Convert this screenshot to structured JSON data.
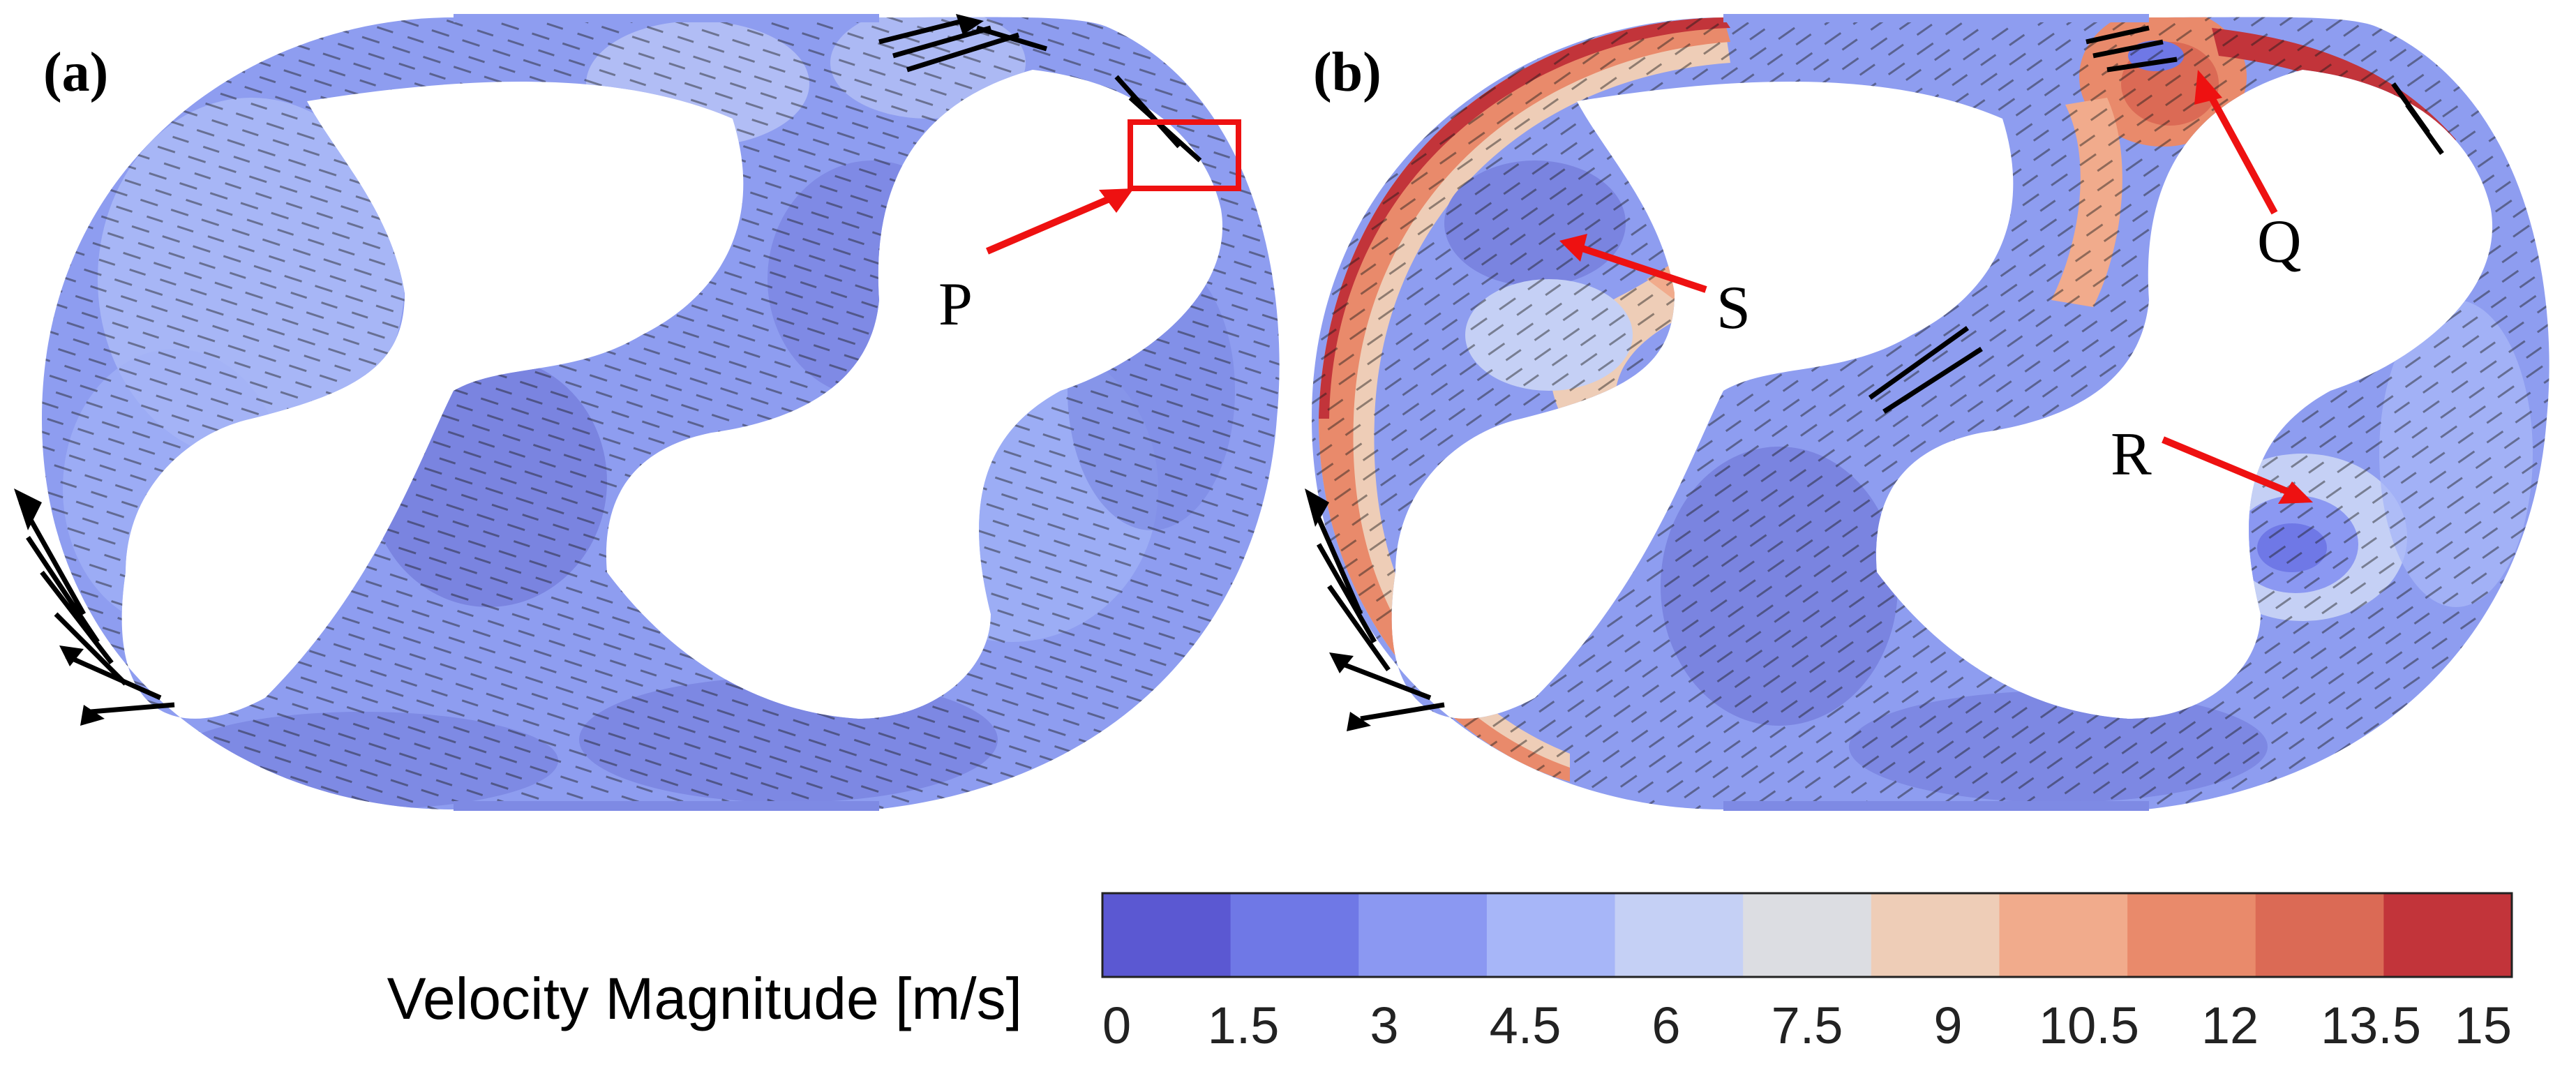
{
  "panels": [
    {
      "id": "a",
      "label": "(a)"
    },
    {
      "id": "b",
      "label": "(b)"
    }
  ],
  "annotations": {
    "P": "P",
    "Q": "Q",
    "R": "R",
    "S": "S"
  },
  "colorbar": {
    "title": "Velocity Magnitude [m/s]",
    "ticks": [
      "0",
      "1.5",
      "3",
      "4.5",
      "6",
      "7.5",
      "9",
      "10.5",
      "12",
      "13.5",
      "15"
    ],
    "colors": [
      "#5b58d2",
      "#6f78e6",
      "#8b98f2",
      "#a7b6f8",
      "#c5d0f5",
      "#dcdde2",
      "#eecdb7",
      "#f1ab8c",
      "#e98a6b",
      "#db6a55",
      "#c2343a"
    ]
  },
  "colors": {
    "highlight": "#ee1111",
    "casing_base": "#8e9df0",
    "casing_dark": "#7c86e2",
    "casing_light": "#aebdf7"
  }
}
